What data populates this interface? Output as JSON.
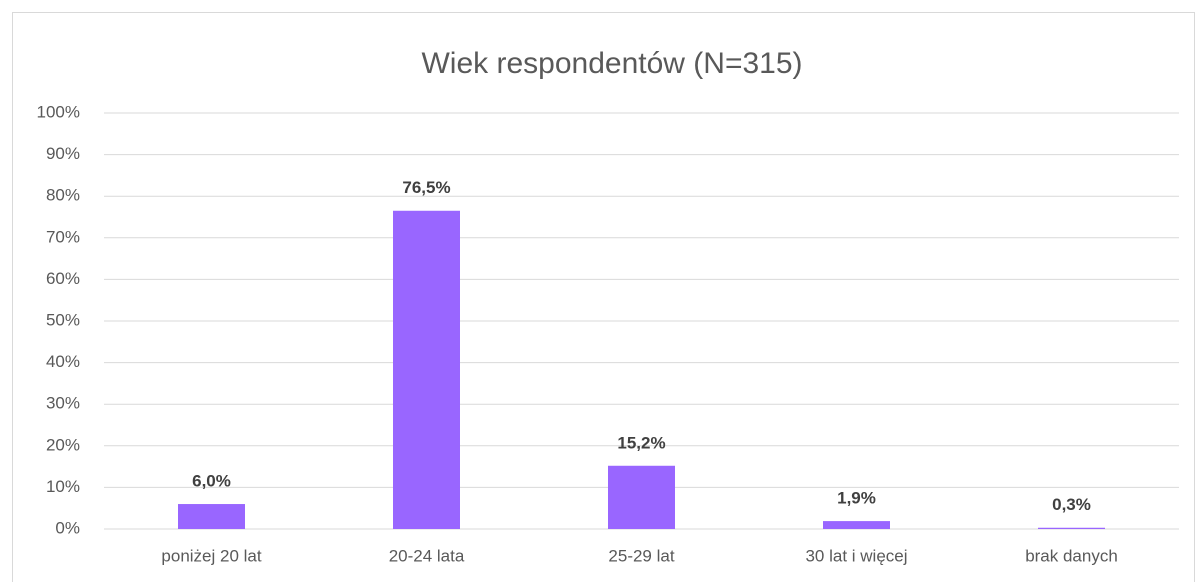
{
  "chart_data": {
    "type": "bar",
    "title": "Wiek respondentów (N=315)",
    "categories": [
      "poniżej 20 lat",
      "20-24 lata",
      "25-29 lat",
      "30 lat i więcej",
      "brak danych"
    ],
    "values": [
      6.0,
      76.5,
      15.2,
      1.9,
      0.3
    ],
    "value_labels": [
      "6,0%",
      "76,5%",
      "15,2%",
      "1,9%",
      "0,3%"
    ],
    "color": "#9966ff",
    "ylim": [
      0,
      100
    ],
    "yticks": [
      {
        "value": 0,
        "label": "0%"
      },
      {
        "value": 10,
        "label": "10%"
      },
      {
        "value": 20,
        "label": "20%"
      },
      {
        "value": 30,
        "label": "30%"
      },
      {
        "value": 40,
        "label": "40%"
      },
      {
        "value": 50,
        "label": "50%"
      },
      {
        "value": 60,
        "label": "60%"
      },
      {
        "value": 70,
        "label": "70%"
      },
      {
        "value": 80,
        "label": "80%"
      },
      {
        "value": 90,
        "label": "90%"
      },
      {
        "value": 100,
        "label": "100%"
      }
    ],
    "grid": true
  }
}
